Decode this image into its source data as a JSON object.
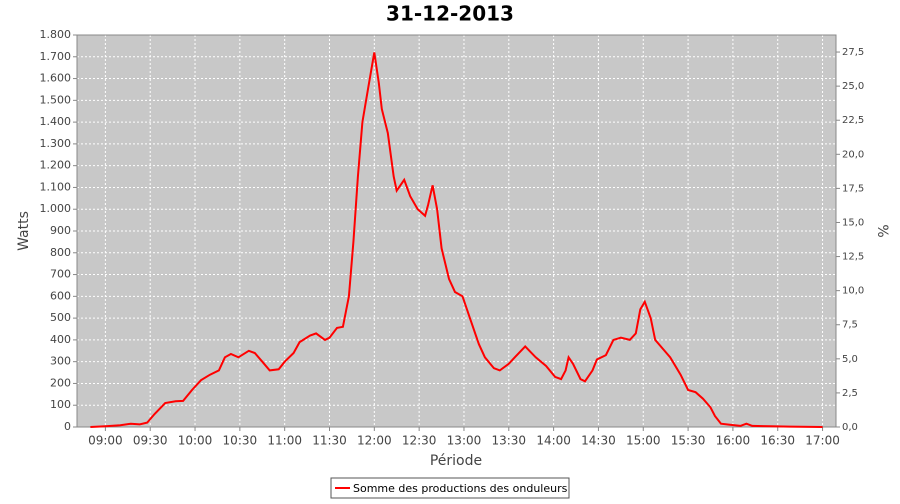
{
  "chart_data": {
    "type": "line",
    "title": "31-12-2013",
    "x_label": "Période",
    "y_label": "Watts",
    "y2_label": "%",
    "grid": true,
    "legend_position": "bottom",
    "xlim": [
      "08:41",
      "17:09"
    ],
    "xticks": [
      "09:00",
      "09:30",
      "10:00",
      "10:30",
      "11:00",
      "11:30",
      "12:00",
      "12:30",
      "13:00",
      "13:30",
      "14:00",
      "14:30",
      "15:00",
      "15:30",
      "16:00",
      "16:30",
      "17:00"
    ],
    "ylim": [
      0,
      1800
    ],
    "yticks": [
      0,
      100,
      200,
      300,
      400,
      500,
      600,
      700,
      800,
      900,
      {
        "value": 1000,
        "label": "1.000"
      },
      {
        "value": 1100,
        "label": "1.100"
      },
      {
        "value": 1200,
        "label": "1.200"
      },
      {
        "value": 1300,
        "label": "1.300"
      },
      {
        "value": 1400,
        "label": "1.400"
      },
      {
        "value": 1500,
        "label": "1.500"
      },
      {
        "value": 1600,
        "label": "1.600"
      },
      {
        "value": 1700,
        "label": "1.700"
      },
      {
        "value": 1800,
        "label": "1.800"
      }
    ],
    "y2lim": [
      0,
      28.75
    ],
    "y2ticks": [
      {
        "value": 0,
        "label": "0,0"
      },
      {
        "value": 2.5,
        "label": "2,5"
      },
      {
        "value": 5,
        "label": "5,0"
      },
      {
        "value": 7.5,
        "label": "7,5"
      },
      {
        "value": 10,
        "label": "10,0"
      },
      {
        "value": 12.5,
        "label": "12,5"
      },
      {
        "value": 15,
        "label": "15,0"
      },
      {
        "value": 17.5,
        "label": "17,5"
      },
      {
        "value": 20,
        "label": "20,0"
      },
      {
        "value": 22.5,
        "label": "22,5"
      },
      {
        "value": 25,
        "label": "25,0"
      },
      {
        "value": 27.5,
        "label": "27,5"
      }
    ],
    "x": [
      "08:50",
      "09:00",
      "09:10",
      "09:17",
      "09:23",
      "09:28",
      "09:33",
      "09:40",
      "09:47",
      "09:52",
      "09:58",
      "10:04",
      "10:10",
      "10:16",
      "10:20",
      "10:24",
      "10:29",
      "10:36",
      "10:40",
      "10:45",
      "10:50",
      "10:56",
      "11:00",
      "11:06",
      "11:10",
      "11:17",
      "11:21",
      "11:27",
      "11:30",
      "11:35",
      "11:39",
      "11:43",
      "11:46",
      "11:49",
      "11:52",
      "11:56",
      "12:00",
      "12:03",
      "12:05",
      "12:09",
      "12:13",
      "12:15",
      "12:20",
      "12:24",
      "12:29",
      "12:34",
      "12:36",
      "12:39",
      "12:42",
      "12:45",
      "12:50",
      "12:54",
      "12:59",
      "13:04",
      "13:10",
      "13:14",
      "13:20",
      "13:24",
      "13:30",
      "13:34",
      "13:41",
      "13:48",
      "13:55",
      "14:01",
      "14:05",
      "14:08",
      "14:10",
      "14:13",
      "14:18",
      "14:21",
      "14:26",
      "14:29",
      "14:35",
      "14:40",
      "14:45",
      "14:51",
      "14:55",
      "14:58",
      "15:01",
      "15:05",
      "15:08",
      "15:13",
      "15:18",
      "15:25",
      "15:30",
      "15:35",
      "15:40",
      "15:45",
      "15:48",
      "15:52",
      "15:58",
      "16:05",
      "16:09",
      "16:13",
      "16:25",
      "16:38",
      "17:00"
    ],
    "series": [
      {
        "name": "Somme des productions des onduleurs",
        "color": "#ff0000",
        "values": [
          0,
          3,
          8,
          15,
          12,
          20,
          60,
          110,
          118,
          120,
          170,
          215,
          240,
          260,
          320,
          335,
          320,
          350,
          340,
          300,
          260,
          265,
          300,
          340,
          390,
          420,
          430,
          400,
          410,
          455,
          460,
          600,
          850,
          1150,
          1400,
          1560,
          1720,
          1580,
          1460,
          1350,
          1150,
          1085,
          1135,
          1060,
          1000,
          970,
          1020,
          1110,
          1000,
          820,
          680,
          620,
          600,
          500,
          380,
          320,
          270,
          260,
          290,
          320,
          370,
          320,
          280,
          230,
          220,
          260,
          320,
          290,
          220,
          210,
          260,
          310,
          330,
          400,
          410,
          400,
          430,
          540,
          575,
          500,
          400,
          360,
          320,
          240,
          170,
          160,
          130,
          90,
          50,
          15,
          10,
          5,
          15,
          5,
          3,
          2,
          0
        ]
      }
    ]
  }
}
